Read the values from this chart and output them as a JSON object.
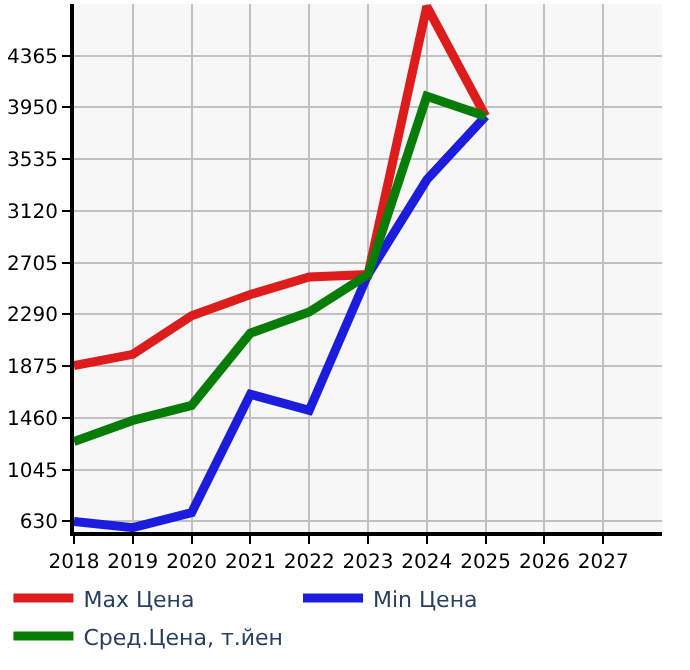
{
  "chart_data": {
    "type": "line",
    "x": [
      2018,
      2019,
      2020,
      2021,
      2022,
      2023,
      2024,
      2025
    ],
    "series": [
      {
        "name": "Max Цена",
        "color": "#dd1c1c",
        "values": [
          1880,
          1970,
          2280,
          2450,
          2590,
          2610,
          4760,
          3880
        ]
      },
      {
        "name": "Min Цена",
        "color": "#1c1cdd",
        "values": [
          630,
          580,
          700,
          1650,
          1520,
          2610,
          3370,
          3880
        ]
      },
      {
        "name": "Сред.Цена, т.йен",
        "color": "#077d07",
        "values": [
          1270,
          1440,
          1560,
          2140,
          2310,
          2610,
          4040,
          3880
        ]
      }
    ],
    "xlim": [
      2018,
      2028
    ],
    "xticks": [
      2018,
      2019,
      2020,
      2021,
      2022,
      2023,
      2024,
      2025,
      2026,
      2027
    ],
    "ylim": [
      545,
      4780
    ],
    "yticks": [
      630,
      1045,
      1460,
      1875,
      2290,
      2705,
      3120,
      3535,
      3950,
      4365
    ],
    "grid": true,
    "legend": "bottom",
    "marker": "none",
    "line_style": "solid"
  }
}
